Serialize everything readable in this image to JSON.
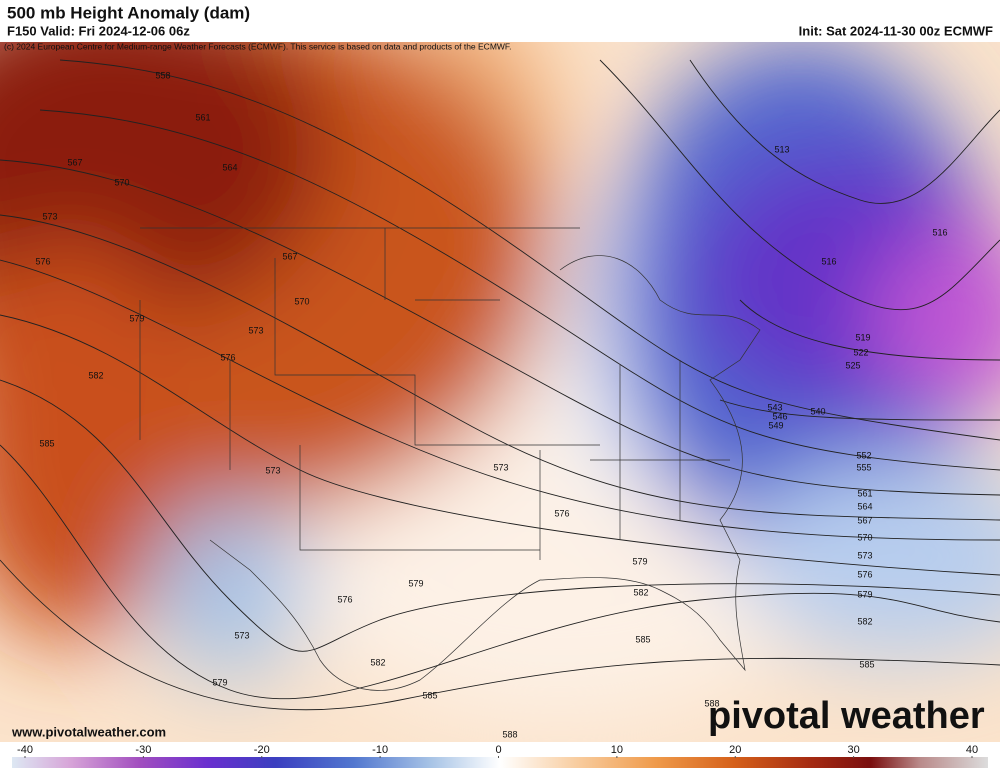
{
  "header": {
    "title": "500 mb Height Anomaly (dam)",
    "valid": "F150 Valid: Fri 2024-12-06 06z",
    "init": "Init: Sat 2024-11-30 00z ECMWF",
    "copyright": "(c) 2024 European Centre for Medium-range Weather Forecasts (ECMWF). This service is based on data and products of the ECMWF."
  },
  "contour_labels": [
    558,
    561,
    567,
    564,
    570,
    573,
    576,
    567,
    570,
    579,
    573,
    576,
    582,
    585,
    573,
    573,
    576,
    579,
    579,
    576,
    582,
    573,
    582,
    585,
    579,
    585,
    588,
    588,
    513,
    516,
    516,
    519,
    522,
    525,
    543,
    546,
    549,
    540,
    552,
    555,
    561,
    564,
    567,
    570,
    573,
    576,
    579,
    582,
    585
  ],
  "colorbar": {
    "ticks": [
      -40,
      -30,
      -20,
      -10,
      0,
      10,
      20,
      30,
      40
    ]
  },
  "footer": {
    "website": "www.pivotalweather.com",
    "logo": "pivotal weather"
  }
}
